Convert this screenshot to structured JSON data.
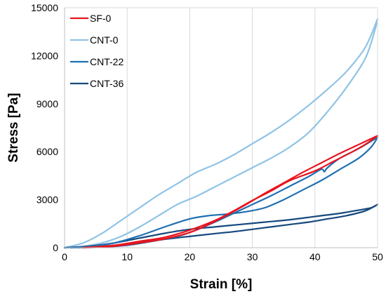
{
  "chart_data": {
    "type": "line",
    "title": "",
    "xlabel": "Strain [%]",
    "ylabel": "Stress [Pa]",
    "xlim": [
      0,
      50
    ],
    "ylim": [
      0,
      15000
    ],
    "xticks": [
      0,
      10,
      20,
      30,
      40,
      50
    ],
    "yticks": [
      0,
      3000,
      6000,
      9000,
      12000,
      15000
    ],
    "xtick_labels": [
      "0",
      "10",
      "20",
      "30",
      "40",
      "50"
    ],
    "ytick_labels": [
      "0",
      "3000",
      "6000",
      "9000",
      "12000",
      "15000"
    ],
    "grid": "vertical",
    "legend_position": "top-left",
    "series": [
      {
        "name": "SF-0",
        "color": "#e8141e",
        "loading": [
          [
            3,
            0
          ],
          [
            8,
            150
          ],
          [
            12,
            400
          ],
          [
            16,
            650
          ],
          [
            20,
            1100
          ],
          [
            24,
            1700
          ],
          [
            27,
            2300
          ],
          [
            30,
            2950
          ],
          [
            33,
            3550
          ],
          [
            36,
            4200
          ],
          [
            40,
            4800
          ],
          [
            43,
            5400
          ],
          [
            46,
            6000
          ],
          [
            48,
            6450
          ],
          [
            50,
            7000
          ]
        ],
        "unloading": [
          [
            50,
            7000
          ],
          [
            47,
            6450
          ],
          [
            44,
            5900
          ],
          [
            41,
            5300
          ],
          [
            38,
            4700
          ],
          [
            35,
            4050
          ],
          [
            32,
            3400
          ],
          [
            29,
            2700
          ],
          [
            26,
            2050
          ],
          [
            23,
            1450
          ],
          [
            20,
            950
          ],
          [
            16,
            550
          ],
          [
            12,
            300
          ],
          [
            8,
            100
          ],
          [
            3,
            0
          ]
        ]
      },
      {
        "name": "CNT-0",
        "color": "#8fc3e6",
        "loading": [
          [
            0,
            0
          ],
          [
            3,
            300
          ],
          [
            6,
            900
          ],
          [
            9,
            1700
          ],
          [
            12,
            2500
          ],
          [
            15,
            3300
          ],
          [
            18,
            4000
          ],
          [
            21,
            4700
          ],
          [
            24,
            5200
          ],
          [
            27,
            5800
          ],
          [
            30,
            6500
          ],
          [
            33,
            7200
          ],
          [
            36,
            8000
          ],
          [
            39,
            8900
          ],
          [
            42,
            9900
          ],
          [
            45,
            11000
          ],
          [
            48,
            12500
          ],
          [
            50,
            14300
          ]
        ],
        "unloading": [
          [
            50,
            14300
          ],
          [
            49.5,
            13500
          ],
          [
            48,
            11800
          ],
          [
            45,
            10000
          ],
          [
            42,
            8500
          ],
          [
            39,
            7200
          ],
          [
            36,
            6300
          ],
          [
            33,
            5600
          ],
          [
            30,
            5000
          ],
          [
            27,
            4400
          ],
          [
            24,
            3800
          ],
          [
            21,
            3200
          ],
          [
            18,
            2700
          ],
          [
            15,
            2000
          ],
          [
            12,
            1300
          ],
          [
            9,
            700
          ],
          [
            6,
            300
          ],
          [
            3,
            80
          ],
          [
            1,
            0
          ]
        ]
      },
      {
        "name": "CNT-22",
        "color": "#1f6fb2",
        "loading": [
          [
            0,
            0
          ],
          [
            4,
            80
          ],
          [
            8,
            300
          ],
          [
            12,
            750
          ],
          [
            16,
            1300
          ],
          [
            20,
            1800
          ],
          [
            23,
            2000
          ],
          [
            26,
            2100
          ],
          [
            29,
            2250
          ],
          [
            32,
            2500
          ],
          [
            35,
            3000
          ],
          [
            38,
            3600
          ],
          [
            41,
            4200
          ],
          [
            44,
            4900
          ],
          [
            47,
            5600
          ],
          [
            49,
            6300
          ],
          [
            50,
            6900
          ]
        ],
        "unloading": [
          [
            50,
            6900
          ],
          [
            47,
            6200
          ],
          [
            44,
            5600
          ],
          [
            42,
            5000
          ],
          [
            41.5,
            4750
          ],
          [
            41,
            4900
          ],
          [
            39,
            4450
          ],
          [
            36,
            3850
          ],
          [
            33,
            3250
          ],
          [
            30,
            2700
          ],
          [
            27,
            2150
          ],
          [
            24,
            1600
          ],
          [
            21,
            1100
          ],
          [
            18,
            700
          ],
          [
            14,
            400
          ],
          [
            10,
            150
          ],
          [
            6,
            40
          ],
          [
            2,
            0
          ]
        ]
      },
      {
        "name": "CNT-36",
        "color": "#16497e",
        "loading": [
          [
            0,
            0
          ],
          [
            4,
            100
          ],
          [
            8,
            300
          ],
          [
            12,
            600
          ],
          [
            16,
            900
          ],
          [
            20,
            1150
          ],
          [
            24,
            1300
          ],
          [
            28,
            1450
          ],
          [
            32,
            1600
          ],
          [
            36,
            1750
          ],
          [
            40,
            1950
          ],
          [
            44,
            2150
          ],
          [
            47,
            2350
          ],
          [
            49,
            2500
          ],
          [
            50,
            2700
          ]
        ],
        "unloading": [
          [
            50,
            2700
          ],
          [
            48,
            2300
          ],
          [
            45,
            2000
          ],
          [
            42,
            1800
          ],
          [
            39,
            1600
          ],
          [
            36,
            1450
          ],
          [
            33,
            1300
          ],
          [
            30,
            1150
          ],
          [
            27,
            1000
          ],
          [
            24,
            880
          ],
          [
            21,
            750
          ],
          [
            18,
            620
          ],
          [
            15,
            480
          ],
          [
            12,
            320
          ],
          [
            8,
            150
          ],
          [
            4,
            40
          ],
          [
            1,
            0
          ]
        ]
      }
    ]
  }
}
